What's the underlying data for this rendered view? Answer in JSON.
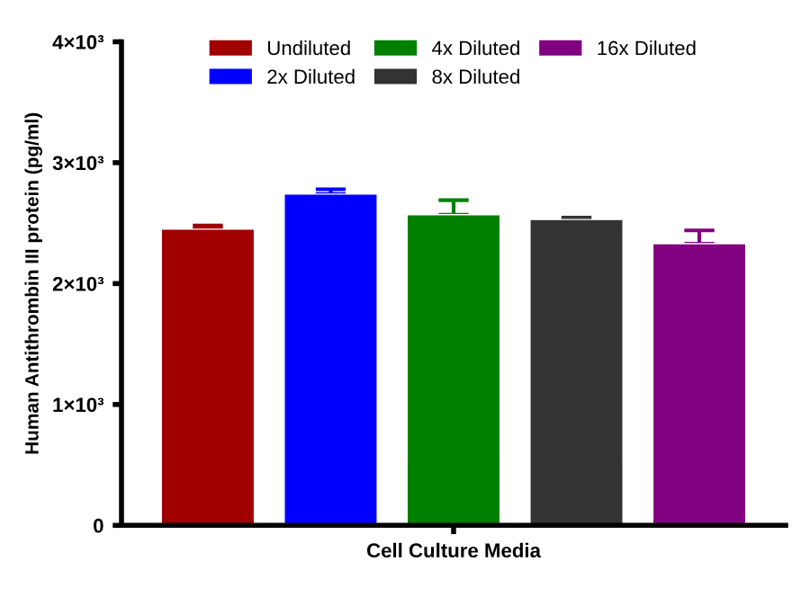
{
  "chart_data": {
    "type": "bar",
    "ylabel": "Human Antithrombin III protein (pg/ml)",
    "categories": [
      "Cell Culture Media"
    ],
    "series": [
      {
        "name": "Undiluted",
        "color": "#a00000",
        "values": [
          2450
        ],
        "errors": [
          [
            2450,
            2480
          ]
        ]
      },
      {
        "name": "2x Diluted",
        "color": "#0000ff",
        "values": [
          2740
        ],
        "errors": [
          [
            2740,
            2780
          ]
        ]
      },
      {
        "name": "4x Diluted",
        "color": "#008000",
        "values": [
          2570
        ],
        "errors": [
          [
            2570,
            2690
          ]
        ]
      },
      {
        "name": "8x Diluted",
        "color": "#333333",
        "values": [
          2530
        ],
        "errors": [
          [
            2530,
            2545
          ]
        ]
      },
      {
        "name": "16x Diluted",
        "color": "#800080",
        "values": [
          2330
        ],
        "errors": [
          [
            2330,
            2440
          ]
        ]
      }
    ],
    "ylim": [
      0,
      4000
    ],
    "yticks": [
      0,
      {
        "value": 1000,
        "label": "1×10³"
      },
      {
        "value": 2000,
        "label": "2×10³"
      },
      {
        "value": 3000,
        "label": "3×10³"
      },
      {
        "value": 4000,
        "label": "4×10³"
      }
    ],
    "grid": false,
    "legend": "top"
  }
}
